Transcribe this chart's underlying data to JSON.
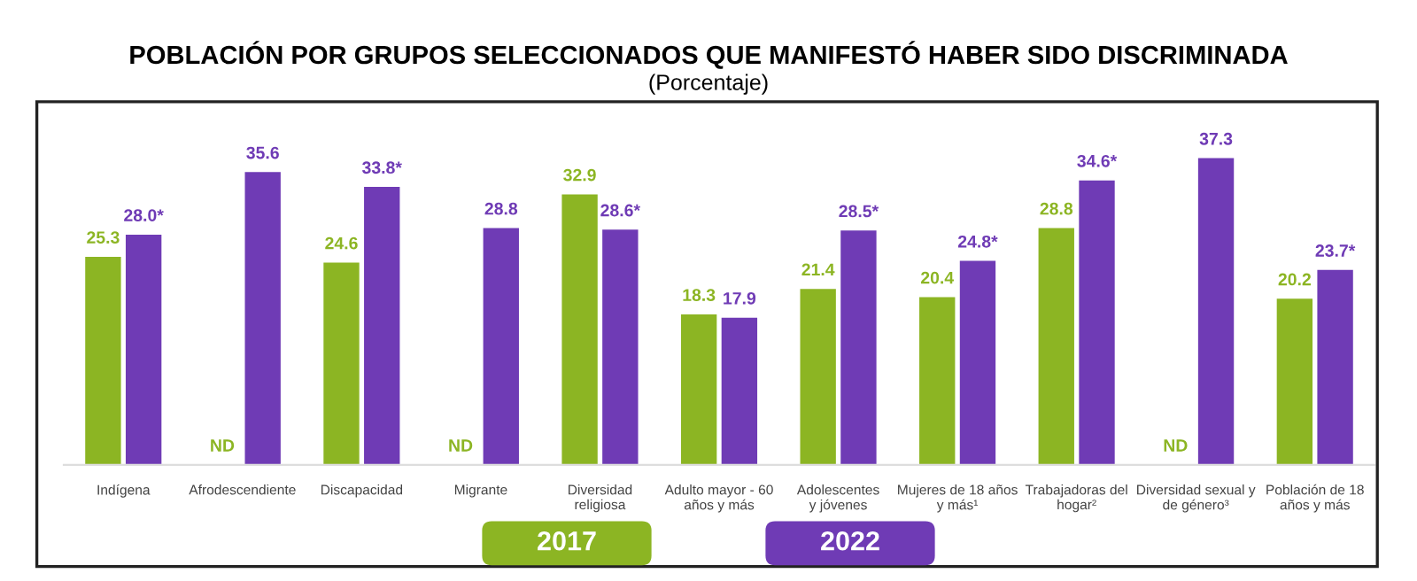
{
  "chart_data": {
    "type": "bar",
    "title": "POBLACIÓN POR GRUPOS SELECCIONADOS QUE MANIFESTÓ HABER SIDO DISCRIMINADA",
    "subtitle": "(Porcentaje)",
    "categories": [
      "Indígena",
      "Afrodescendiente",
      "Discapacidad",
      "Migrante",
      "Diversidad\nreligiosa",
      "Adulto mayor - 60\naños y más",
      "Adolescentes\ny jóvenes",
      "Mujeres de 18 años\ny más¹",
      "Trabajadoras del\nhogar²",
      "Diversidad sexual y\nde género³",
      "Población de 18\naños y más"
    ],
    "series": [
      {
        "name": "2017",
        "color": "#8cb523",
        "values": [
          25.3,
          null,
          24.6,
          null,
          32.9,
          18.3,
          21.4,
          20.4,
          28.8,
          null,
          20.2
        ],
        "value_labels": [
          "25.3",
          "ND",
          "24.6",
          "ND",
          "32.9",
          "18.3",
          "21.4",
          "20.4",
          "28.8",
          "ND",
          "20.2"
        ]
      },
      {
        "name": "2022",
        "color": "#6f3bb5",
        "values": [
          28.0,
          35.6,
          33.8,
          28.8,
          28.6,
          17.9,
          28.5,
          24.8,
          34.6,
          37.3,
          23.7
        ],
        "value_labels": [
          "28.0*",
          "35.6",
          "33.8*",
          "28.8",
          "28.6*",
          "17.9",
          "28.5*",
          "24.8*",
          "34.6*",
          "37.3",
          "23.7*"
        ]
      }
    ],
    "legend": "bottom"
  }
}
